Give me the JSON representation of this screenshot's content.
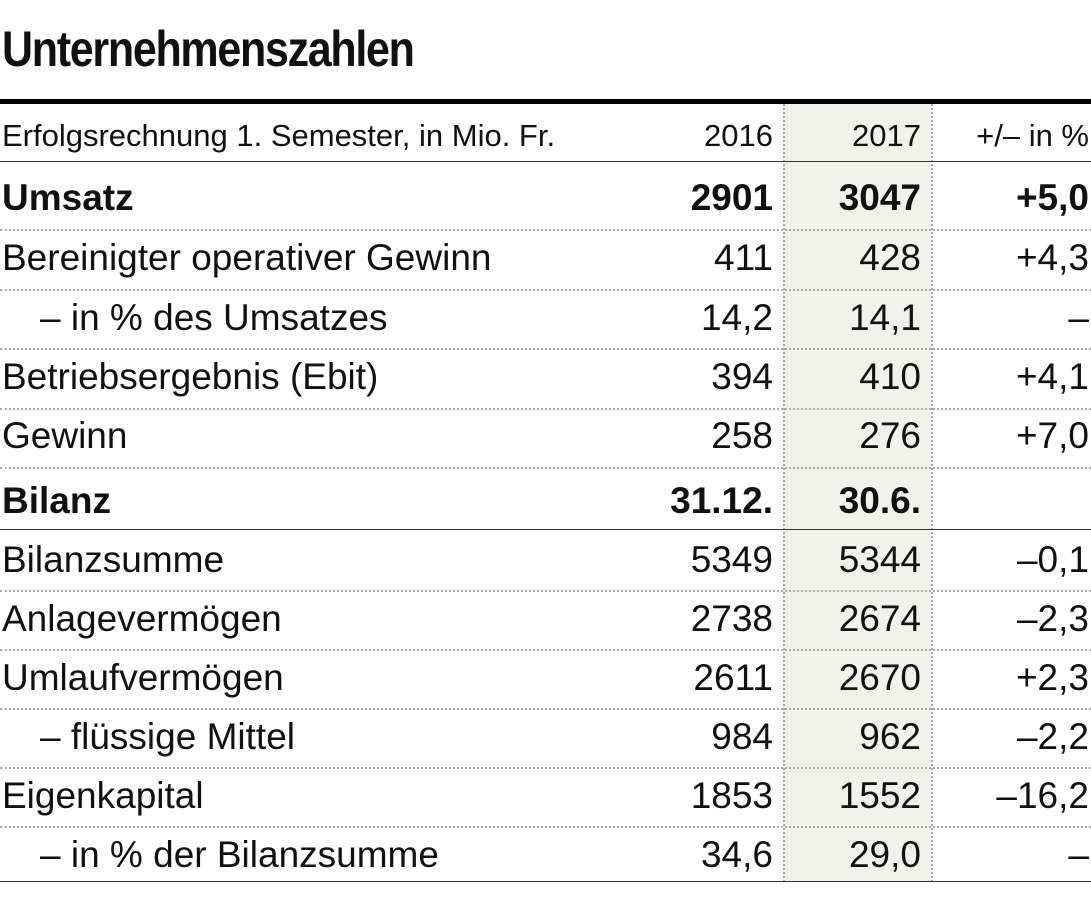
{
  "title": "Unternehmenszahlen",
  "header": {
    "label": "Erfolgsrechnung 1. Semester, in Mio. Fr.",
    "y2016": "2016",
    "y2017": "2017",
    "change": "+/– in %"
  },
  "rows": [
    {
      "label": "Umsatz",
      "v2016": "2901",
      "v2017": "3047",
      "change": "+5,0"
    },
    {
      "label": "Bereinigter operativer Gewinn",
      "v2016": "411",
      "v2017": "428",
      "change": "+4,3"
    },
    {
      "label": "– in % des Umsatzes",
      "v2016": "14,2",
      "v2017": "14,1",
      "change": "–"
    },
    {
      "label": "Betriebsergebnis (Ebit)",
      "v2016": "394",
      "v2017": "410",
      "change": "+4,1"
    },
    {
      "label": "Gewinn",
      "v2016": "258",
      "v2017": "276",
      "change": "+7,0"
    },
    {
      "label": "Bilanz",
      "v2016": "31.12.",
      "v2017": "30.6.",
      "change": ""
    },
    {
      "label": "Bilanzsumme",
      "v2016": "5349",
      "v2017": "5344",
      "change": "–0,1"
    },
    {
      "label": "Anlagevermögen",
      "v2016": "2738",
      "v2017": "2674",
      "change": "–2,3"
    },
    {
      "label": "Umlaufvermögen",
      "v2016": "2611",
      "v2017": "2670",
      "change": "+2,3"
    },
    {
      "label": "– flüssige Mittel",
      "v2016": "984",
      "v2017": "962",
      "change": "–2,2"
    },
    {
      "label": "Eigenkapital",
      "v2016": "1853",
      "v2017": "1552",
      "change": "–16,2"
    },
    {
      "label": "– in % der Bilanzsumme",
      "v2016": "34,6",
      "v2017": "29,0",
      "change": "–"
    }
  ]
}
